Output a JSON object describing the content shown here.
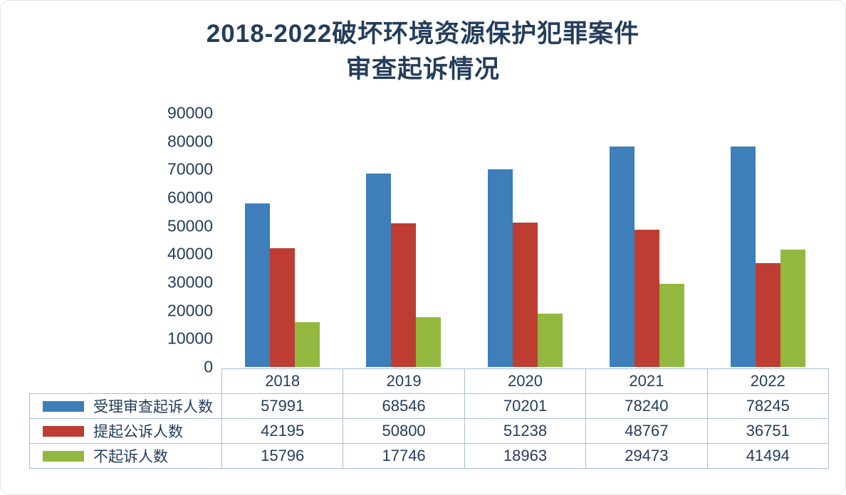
{
  "title": {
    "line1": "2018-2022破坏环境资源保护犯罪案件",
    "line2": "审查起诉情况"
  },
  "colors": {
    "text": "#243d5c",
    "table_border": "#a6bfd4"
  },
  "chart_data": {
    "type": "bar",
    "title": "2018-2022破坏环境资源保护犯罪案件审查起诉情况",
    "categories": [
      "2018",
      "2019",
      "2020",
      "2021",
      "2022"
    ],
    "series": [
      {
        "name": "受理审查起诉人数",
        "color": "#3d7ebb",
        "values": [
          57991,
          68546,
          70201,
          78240,
          78245
        ]
      },
      {
        "name": "提起公诉人数",
        "color": "#be3d32",
        "values": [
          42195,
          50800,
          51238,
          48767,
          36751
        ]
      },
      {
        "name": "不起诉人数",
        "color": "#93b840",
        "values": [
          15796,
          17746,
          18963,
          29473,
          41494
        ]
      }
    ],
    "xlabel": "",
    "ylabel": "",
    "ylim": [
      0,
      90000
    ],
    "ytick_step": 10000,
    "yticks": [
      "0",
      "10000",
      "20000",
      "30000",
      "40000",
      "50000",
      "60000",
      "70000",
      "80000",
      "90000"
    ],
    "grid": false,
    "legend_position": "table-left"
  }
}
